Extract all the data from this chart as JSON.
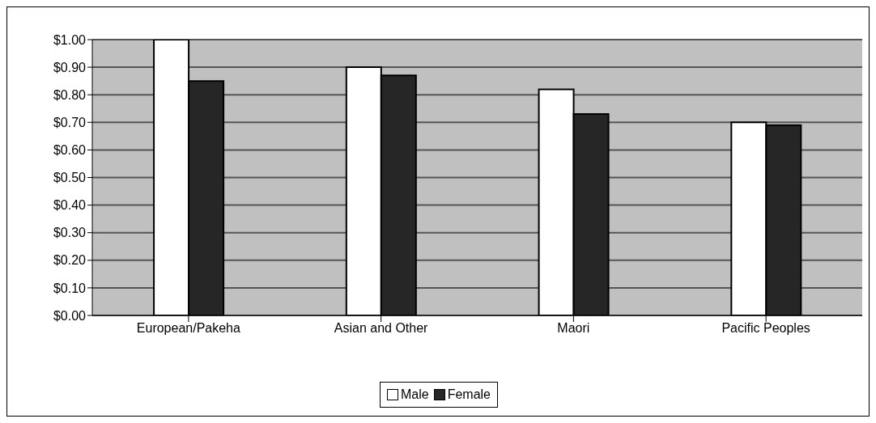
{
  "chart_data": {
    "type": "bar",
    "categories": [
      "European/Pakeha",
      "Asian and Other",
      "Maori",
      "Pacific Peoples"
    ],
    "series": [
      {
        "name": "Male",
        "color": "#ffffff",
        "values": [
          1.0,
          0.9,
          0.82,
          0.7
        ]
      },
      {
        "name": "Female",
        "color": "#262626",
        "values": [
          0.85,
          0.87,
          0.73,
          0.69
        ]
      }
    ],
    "ylim": [
      0,
      1
    ],
    "yticks": [
      {
        "value": 0,
        "label": "$0.00"
      },
      {
        "value": 0.1,
        "label": "$0.10"
      },
      {
        "value": 0.2,
        "label": "$0.20"
      },
      {
        "value": 0.3,
        "label": "$0.30"
      },
      {
        "value": 0.4,
        "label": "$0.40"
      },
      {
        "value": 0.5,
        "label": "$0.50"
      },
      {
        "value": 0.6,
        "label": "$0.60"
      },
      {
        "value": 0.7,
        "label": "$0.70"
      },
      {
        "value": 0.8,
        "label": "$0.80"
      },
      {
        "value": 0.9,
        "label": "$0.90"
      },
      {
        "value": 1,
        "label": "$1.00"
      }
    ],
    "grid": "y",
    "legend": "bottom"
  }
}
